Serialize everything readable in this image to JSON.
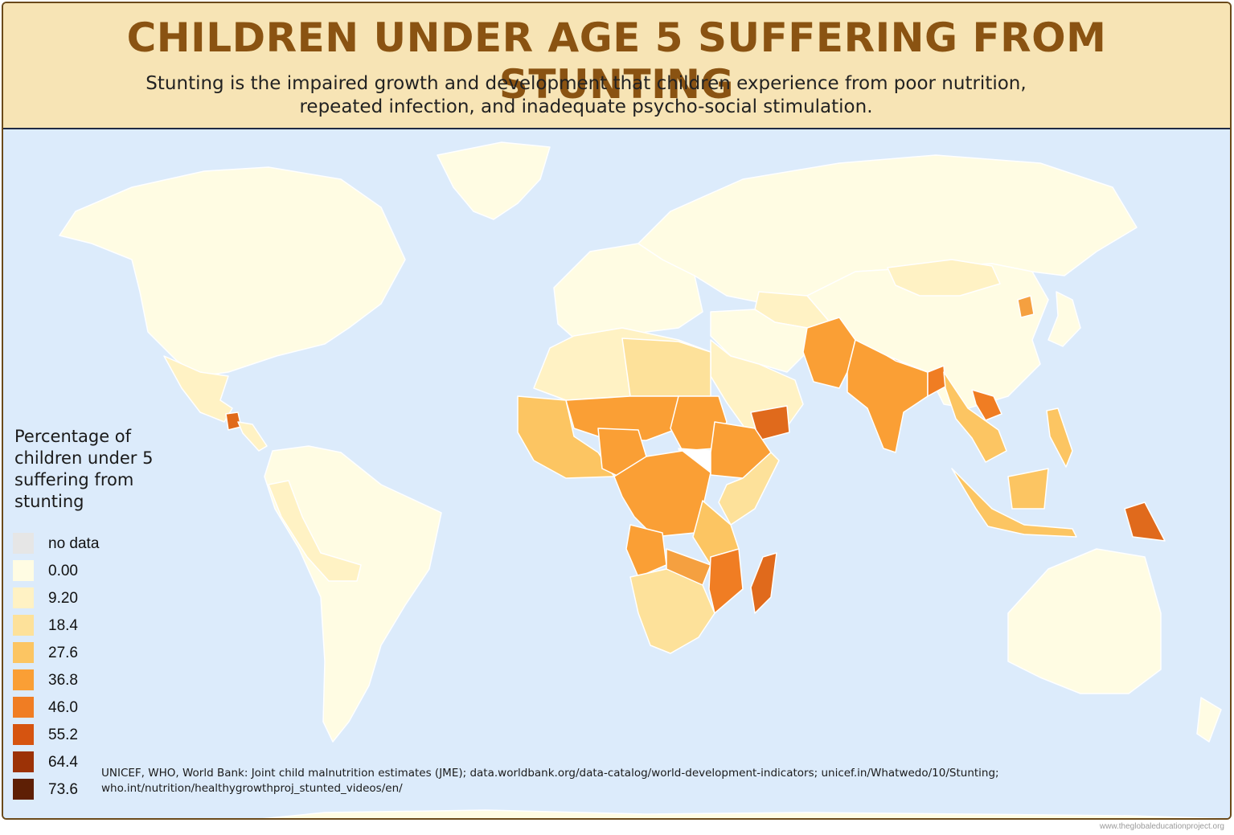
{
  "header": {
    "title": "CHILDREN UNDER AGE 5 SUFFERING FROM STUNTING",
    "subtitle_line1": "Stunting is the impaired growth and development that children experience from poor nutrition,",
    "subtitle_line2": "repeated infection, and inadequate psycho-social stimulation."
  },
  "legend": {
    "title_line1": "Percentage of",
    "title_line2": "children under 5",
    "title_line3": "suffering from",
    "title_line4": "stunting",
    "items": [
      {
        "label": "no data",
        "color": "#e6e6e6"
      },
      {
        "label": "0.00",
        "color": "#fffce3"
      },
      {
        "label": "9.20",
        "color": "#fff2c4"
      },
      {
        "label": "18.4",
        "color": "#fde19a"
      },
      {
        "label": "27.6",
        "color": "#fcc562"
      },
      {
        "label": "36.8",
        "color": "#fa9f35"
      },
      {
        "label": "46.0",
        "color": "#f07d23"
      },
      {
        "label": "55.2",
        "color": "#d65410"
      },
      {
        "label": "64.4",
        "color": "#9c3206"
      },
      {
        "label": "73.6",
        "color": "#5e1f05"
      }
    ]
  },
  "map": {
    "ocean_color": "#dcebfb",
    "regions": [
      {
        "name": "north-america",
        "color": "#fffce3"
      },
      {
        "name": "greenland",
        "color": "#fffce3"
      },
      {
        "name": "mexico",
        "color": "#fff2c4"
      },
      {
        "name": "guatemala",
        "color": "#e06a1c"
      },
      {
        "name": "central-america",
        "color": "#fff2c4"
      },
      {
        "name": "south-america",
        "color": "#fffce3"
      },
      {
        "name": "andes",
        "color": "#fff2c4"
      },
      {
        "name": "europe",
        "color": "#fffce3"
      },
      {
        "name": "russia",
        "color": "#fffce3"
      },
      {
        "name": "north-africa",
        "color": "#fff2c4"
      },
      {
        "name": "egypt-libya",
        "color": "#fde19a"
      },
      {
        "name": "west-africa",
        "color": "#fcc562"
      },
      {
        "name": "sahel",
        "color": "#fa9f35"
      },
      {
        "name": "nigeria",
        "color": "#fa9f35"
      },
      {
        "name": "sudan",
        "color": "#fa9f35"
      },
      {
        "name": "south-sudan",
        "color": "#ffffff"
      },
      {
        "name": "ethiopia",
        "color": "#fa9f35"
      },
      {
        "name": "somalia-kenya",
        "color": "#fde19a"
      },
      {
        "name": "central-africa",
        "color": "#fa9f35"
      },
      {
        "name": "angola",
        "color": "#fa9f35"
      },
      {
        "name": "zambia",
        "color": "#f5a040"
      },
      {
        "name": "tanzania",
        "color": "#fcc562"
      },
      {
        "name": "mozambique",
        "color": "#f07d23"
      },
      {
        "name": "southern-africa",
        "color": "#fde19a"
      },
      {
        "name": "madagascar",
        "color": "#e06a1c"
      },
      {
        "name": "arabia",
        "color": "#fff2c4"
      },
      {
        "name": "yemen",
        "color": "#e06a1c"
      },
      {
        "name": "iran-iraq",
        "color": "#fffce3"
      },
      {
        "name": "central-asia",
        "color": "#fff2c4"
      },
      {
        "name": "afghanistan-pakistan",
        "color": "#fa9f35"
      },
      {
        "name": "india",
        "color": "#fa9f35"
      },
      {
        "name": "nepal-bangladesh",
        "color": "#f07d23"
      },
      {
        "name": "china",
        "color": "#fffce3"
      },
      {
        "name": "mongolia",
        "color": "#fff2c4"
      },
      {
        "name": "north-korea",
        "color": "#f5a040"
      },
      {
        "name": "japan",
        "color": "#fffce3"
      },
      {
        "name": "southeast-asia",
        "color": "#fcc562"
      },
      {
        "name": "laos",
        "color": "#f07d23"
      },
      {
        "name": "indonesia",
        "color": "#fcc562"
      },
      {
        "name": "philippines",
        "color": "#fcc562"
      },
      {
        "name": "papua-new-guinea",
        "color": "#e06a1c"
      },
      {
        "name": "australia",
        "color": "#fffce3"
      },
      {
        "name": "new-zealand",
        "color": "#fffce3"
      },
      {
        "name": "antarctica",
        "color": "#fffce3"
      }
    ]
  },
  "source": {
    "line1": "UNICEF, WHO, World Bank: Joint child malnutrition estimates (JME); data.worldbank.org/data-catalog/world-development-indicators; unicef.in/Whatwedo/10/Stunting;",
    "line2": "who.int/nutrition/healthygrowthproj_stunted_videos/en/"
  },
  "credit": "www.theglobaleducationproject.org"
}
